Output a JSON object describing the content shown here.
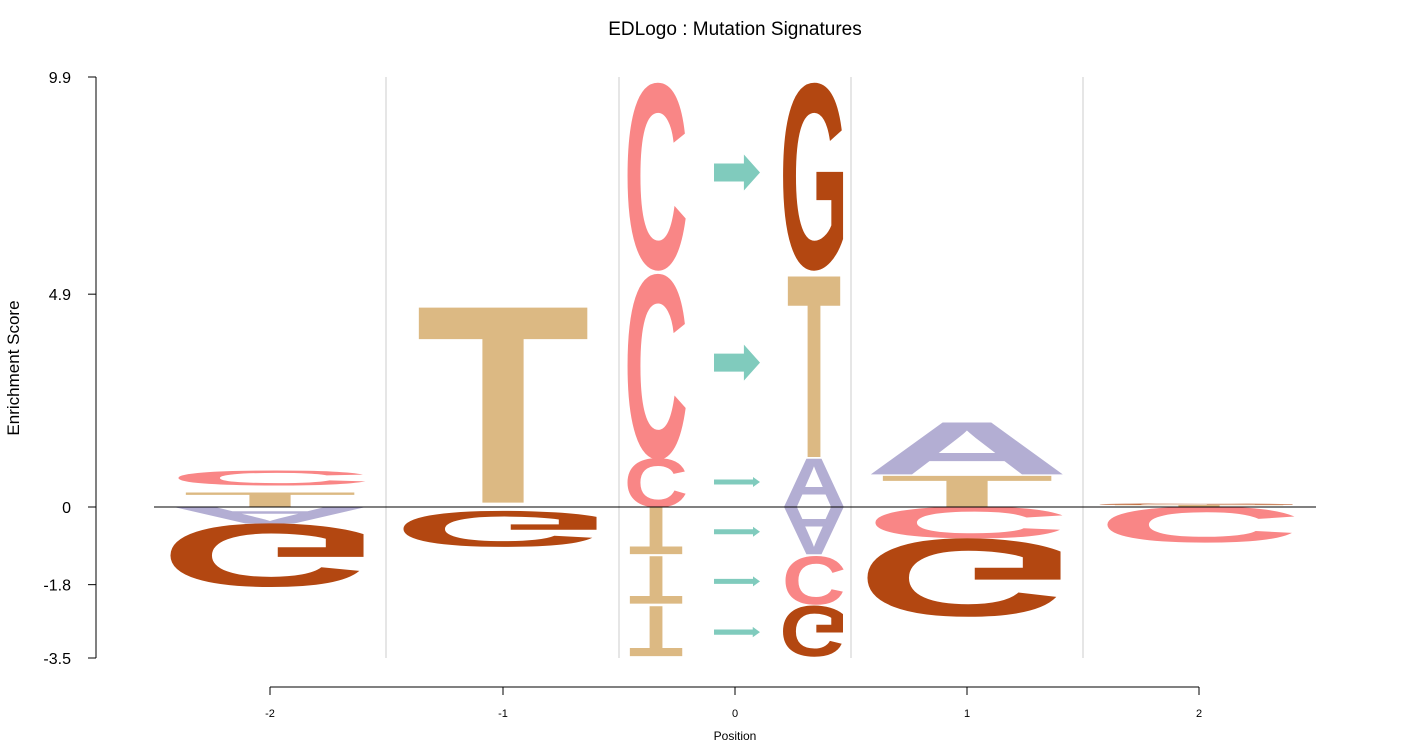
{
  "chart_data": {
    "type": "sequence-logo",
    "title": "EDLogo : Mutation Signatures",
    "xlabel": "Position",
    "ylabel": "Enrichment Score",
    "x_ticks": [
      "-2",
      "-1",
      "0",
      "1",
      "2"
    ],
    "y_ticks": [
      "9.9",
      "4.9",
      "0",
      "-1.8",
      "-3.5"
    ],
    "ylim": [
      -3.5,
      9.9
    ],
    "colors": {
      "A": "#b3aed3",
      "C": "#f98686",
      "G": "#b34711",
      "T": "#dcb983",
      "arrow": "#80cbbd",
      "zero_line": "#000000",
      "separator": "#cccccc"
    },
    "columns": [
      {
        "position": "-2",
        "letters": [
          {
            "letter": "T",
            "from": 0,
            "to": 0.35
          },
          {
            "letter": "C",
            "from": 0.5,
            "to": 0.85
          },
          {
            "letter": "A",
            "from": -0.4,
            "to": 0
          },
          {
            "letter": "G",
            "from": -1.9,
            "to": -0.4
          }
        ]
      },
      {
        "position": "-1",
        "letters": [
          {
            "letter": "T",
            "from": 0.1,
            "to": 4.8
          },
          {
            "letter": "G",
            "from": -0.95,
            "to": -0.1
          }
        ]
      },
      {
        "position": "0",
        "substitutions": [
          {
            "from_letter": "C",
            "to_letter": "G",
            "lower": 5.5,
            "upper": 9.9
          },
          {
            "from_letter": "C",
            "to_letter": "T",
            "lower": 1.15,
            "upper": 5.5
          },
          {
            "from_letter": "C",
            "to_letter": "A",
            "lower": 0,
            "upper": 1.15
          },
          {
            "from_letter": "T",
            "to_letter": "A",
            "lower": -1.15,
            "upper": 0
          },
          {
            "from_letter": "T",
            "to_letter": "C",
            "lower": -2.3,
            "upper": -1.15
          },
          {
            "from_letter": "T",
            "to_letter": "G",
            "lower": -3.5,
            "upper": -2.3
          }
        ]
      },
      {
        "position": "1",
        "letters": [
          {
            "letter": "T",
            "from": 0,
            "to": 0.75
          },
          {
            "letter": "A",
            "from": 0.75,
            "to": 2.0
          },
          {
            "letter": "C",
            "from": -0.75,
            "to": 0
          },
          {
            "letter": "G",
            "from": -2.6,
            "to": -0.75
          }
        ]
      },
      {
        "position": "2",
        "letters": [
          {
            "letter": "T",
            "from": 0,
            "to": 0.05
          },
          {
            "letter": "G",
            "from": 0.05,
            "to": 0.08
          },
          {
            "letter": "C",
            "from": -0.85,
            "to": 0
          }
        ]
      }
    ]
  }
}
